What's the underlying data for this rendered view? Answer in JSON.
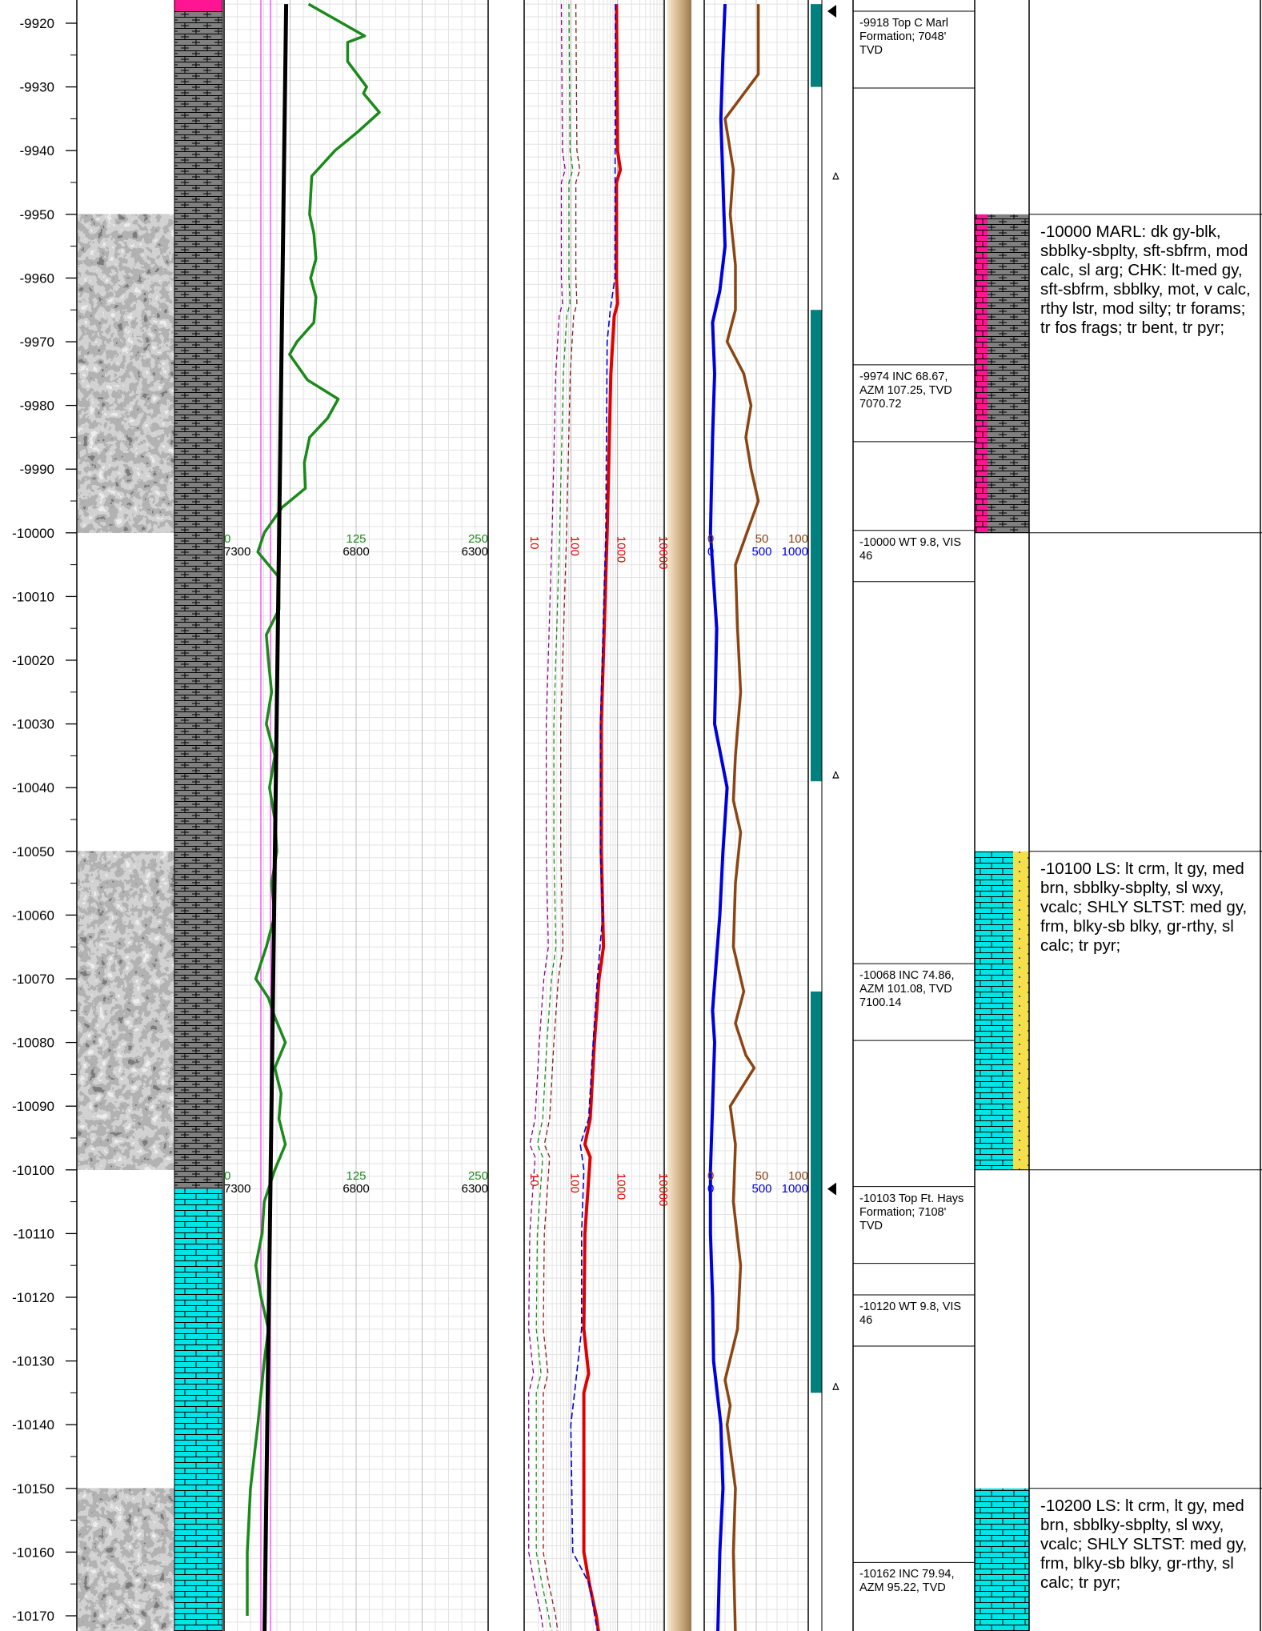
{
  "depth_axis": {
    "min": -10173,
    "max": -9917,
    "labels": [
      "-9920",
      "-9930",
      "-9940",
      "-9950",
      "-9960",
      "-9970",
      "-9980",
      "-9990",
      "-10000",
      "-10010",
      "-10020",
      "-10030",
      "-10040",
      "-10050",
      "-10060",
      "-10070",
      "-10080",
      "-10090",
      "-10100",
      "-10110",
      "-10120",
      "-10130",
      "-10140",
      "-10150",
      "-10160",
      "-10170"
    ]
  },
  "gamma_scale": {
    "min": "0",
    "mid": "125",
    "max": "250",
    "color": "#1a8a1a"
  },
  "rop_scale": {
    "left": "7300",
    "mid": "6800",
    "right": "6300",
    "color": "#000000"
  },
  "resistivity_scale": {
    "labels": [
      "10",
      "100",
      "1000",
      "10000"
    ],
    "color": "#e00000"
  },
  "gas_scale": {
    "a_labels": [
      "0",
      "50",
      "100"
    ],
    "a_color": "#8b4513",
    "b_labels": [
      "0",
      "500",
      "1000"
    ],
    "b_color": "#0000dd"
  },
  "lithology": [
    {
      "from": -9917,
      "to": -10103,
      "type": "marl",
      "color": "#808080"
    },
    {
      "from": -10103,
      "to": -10173,
      "type": "limestone",
      "color": "#00e5e5"
    }
  ],
  "photo_intervals": [
    [
      -9950,
      -10000
    ],
    [
      -10050,
      -10100
    ],
    [
      -10150,
      -10173
    ]
  ],
  "annotations": [
    {
      "depth": -9918,
      "text": "-9918 Top C Marl Formation; 7048' TVD",
      "marker": "top"
    },
    {
      "depth": -9974,
      "text": "-9974 INC 68.67, AZM 107.25, TVD 7070.72",
      "marker": ""
    },
    {
      "depth": -10000,
      "text": "-10000 WT 9.8, VIS 46",
      "marker": ""
    },
    {
      "depth": -10068,
      "text": "-10068 INC 74.86, AZM 101.08, TVD 7100.14",
      "marker": ""
    },
    {
      "depth": -10103,
      "text": "-10103 Top Ft. Hays Formation; 7108' TVD",
      "marker": "top"
    },
    {
      "depth": -10120,
      "text": "-10120 WT 9.8, VIS 46",
      "marker": ""
    },
    {
      "depth": -10162,
      "text": "-10162 INC 79.94, AZM 95.22, TVD",
      "marker": ""
    }
  ],
  "descriptions": [
    {
      "depth": -10000,
      "text": "-10000 MARL: dk gy-blk, sbblky-sbplty, sft-sbfrm, mod calc, sl arg; CHK: lt-med gy, sft-sbfrm, sbblky, mot, v calc, rthy lstr, mod silty; tr forams; tr fos frags; tr bent, tr pyr;",
      "lith": "marl-chalk"
    },
    {
      "depth": -10100,
      "text": "-10100 LS: lt crm, lt gy, med brn, sbblky-sbplty, sl wxy, vcalc; SHLY SLTST: med gy, frm, blky-sb blky, gr-rthy, sl calc; tr pyr;",
      "lith": "ls-siltst"
    },
    {
      "depth": -10200,
      "text": "-10200 LS: lt crm, lt gy, med brn, sbblky-sbplty, sl wxy, vcalc; SHLY SLTST: med gy, frm, blky-sb blky, gr-rthy, sl calc; tr pyr;",
      "lith": "limestone"
    }
  ],
  "chart_data": {
    "type": "line",
    "depth_range": [
      -10173,
      -9917
    ],
    "series": [
      {
        "name": "",
        "unit_scale": "0-250",
        "color": "#1a8a1a",
        "depth": [
          -9917,
          -9922,
          -9923,
          -9926,
          -9930,
          -9931,
          -9934,
          -9937,
          -9940,
          -9944,
          -9950,
          -9953,
          -9957,
          -9960,
          -9963,
          -9967,
          -9970,
          -9972,
          -9976,
          -9979,
          -9982,
          -9985,
          -9989,
          -9993,
          -9996,
          -10000,
          -10003,
          -10007,
          -10012,
          -10016,
          -10020,
          -10025,
          -10030,
          -10035,
          -10040,
          -10045,
          -10050,
          -10055,
          -10060,
          -10065,
          -10070,
          -10073,
          -10076,
          -10080,
          -10084,
          -10088,
          -10092,
          -10096,
          -10100,
          -10105,
          -10110,
          -10115,
          -10120,
          -10125,
          -10130,
          -10140,
          -10150,
          -10160,
          -10170
        ],
        "values": [
          80,
          133,
          117,
          117,
          135,
          132,
          147,
          127,
          105,
          83,
          81,
          85,
          87,
          82,
          87,
          85,
          69,
          62,
          79,
          108,
          98,
          81,
          76,
          77,
          55,
          38,
          32,
          52,
          52,
          40,
          42,
          45,
          40,
          48,
          43,
          48,
          50,
          45,
          48,
          40,
          30,
          42,
          48,
          58,
          48,
          54,
          52,
          58,
          48,
          38,
          36,
          30,
          35,
          42,
          38,
          32,
          25,
          22,
          22
        ]
      },
      {
        "name": "",
        "unit_scale": "7300-6300",
        "color": "#000000",
        "depth": [
          -9917,
          -10173
        ],
        "values": [
          7065,
          7147
        ]
      },
      {
        "name": "",
        "unit_scale": "10-10000 log",
        "color": "#e00000",
        "depth": [
          -9917,
          -9940,
          -9943,
          -9945,
          -9960,
          -9964,
          -9966,
          -9975,
          -10000,
          -10030,
          -10050,
          -10065,
          -10070,
          -10080,
          -10092,
          -10096,
          -10098,
          -10110,
          -10125,
          -10132,
          -10135,
          -10160,
          -10165,
          -10170,
          -10173
        ],
        "values": [
          950,
          1000,
          1150,
          950,
          950,
          1000,
          850,
          720,
          600,
          450,
          450,
          500,
          400,
          320,
          260,
          200,
          260,
          200,
          190,
          240,
          190,
          190,
          250,
          350,
          400
        ]
      },
      {
        "name": "",
        "unit_scale": "10-10000 log",
        "color": "#0000dd",
        "depth": [
          -9917,
          -9960,
          -9965,
          -9970,
          -10000,
          -10030,
          -10050,
          -10060,
          -10070,
          -10080,
          -10092,
          -10096,
          -10100,
          -10110,
          -10125,
          -10135,
          -10140,
          -10160,
          -10165,
          -10173
        ],
        "values": [
          900,
          880,
          700,
          600,
          560,
          430,
          430,
          480,
          370,
          300,
          240,
          160,
          190,
          170,
          170,
          120,
          100,
          110,
          250,
          380
        ]
      },
      {
        "name": "",
        "unit_scale": "0-100",
        "color": "#8b4513",
        "depth": [
          -9917,
          -9928,
          -9935,
          -9943,
          -9950,
          -9958,
          -9965,
          -9970,
          -9975,
          -9980,
          -9985,
          -9990,
          -9995,
          -10005,
          -10015,
          -10025,
          -10035,
          -10042,
          -10047,
          -10055,
          -10065,
          -10072,
          -10077,
          -10082,
          -10084,
          -10090,
          -10096,
          -10105,
          -10115,
          -10125,
          -10133,
          -10137,
          -10140,
          -10150,
          -10160,
          -10173
        ],
        "values": [
          52,
          52,
          20,
          28,
          25,
          30,
          30,
          22,
          38,
          45,
          40,
          45,
          52,
          30,
          32,
          35,
          30,
          28,
          35,
          30,
          28,
          38,
          30,
          40,
          48,
          25,
          30,
          28,
          35,
          32,
          20,
          25,
          22,
          30,
          28,
          30
        ]
      },
      {
        "name": "",
        "unit_scale": "0-1000",
        "color": "#0000dd",
        "depth": [
          -9917,
          -9925,
          -9935,
          -9945,
          -9955,
          -9962,
          -9967,
          -9975,
          -9985,
          -10000,
          -10015,
          -10030,
          -10040,
          -10050,
          -10060,
          -10075,
          -10080,
          -10090,
          -10100,
          -10110,
          -10120,
          -10130,
          -10140,
          -10150,
          -10160,
          -10173
        ],
        "values": [
          200,
          180,
          160,
          180,
          200,
          150,
          80,
          100,
          80,
          60,
          120,
          100,
          220,
          180,
          150,
          80,
          100,
          80,
          60,
          60,
          80,
          90,
          160,
          180,
          150,
          130
        ]
      }
    ]
  }
}
